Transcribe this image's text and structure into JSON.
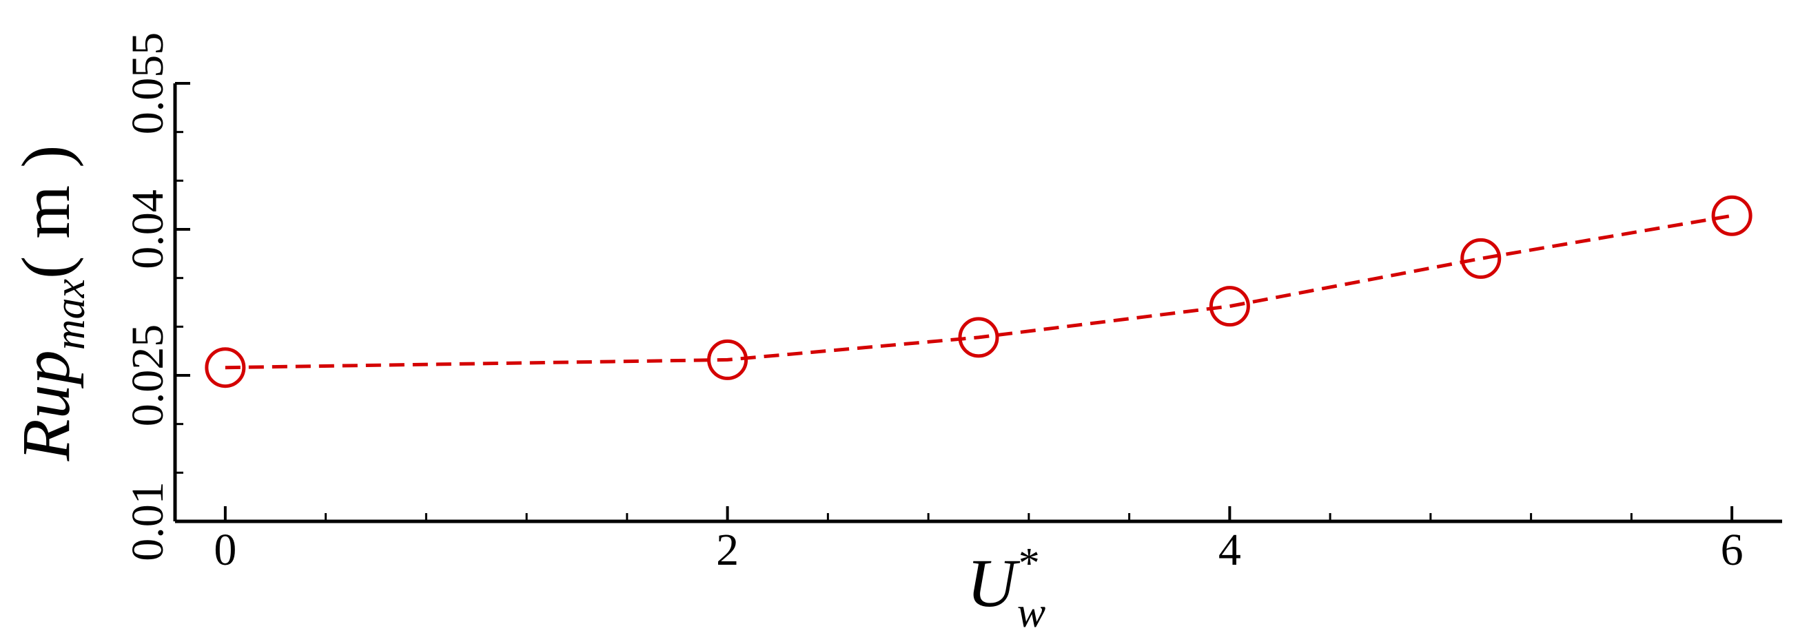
{
  "chart_data": {
    "type": "line",
    "x": [
      0,
      2,
      3,
      4,
      5,
      6
    ],
    "series": [
      {
        "color": "#d40000",
        "values": [
          0.0258,
          0.0266,
          0.0289,
          0.0321,
          0.037,
          0.0414
        ]
      }
    ],
    "xlim": [
      -0.2,
      6.2
    ],
    "xticks": [
      0,
      2,
      4,
      6
    ],
    "xminorticks": [
      0.4,
      0.8,
      1.2,
      1.6,
      2.4,
      2.8,
      3.2,
      3.6,
      4.4,
      4.8,
      5.2,
      5.6
    ],
    "ylim": [
      0.01,
      0.055
    ],
    "yticks": [
      0.01,
      0.025,
      0.04,
      0.055
    ],
    "yminorticks": [
      0.015,
      0.02,
      0.03,
      0.035,
      0.045,
      0.05
    ],
    "xlabel": {
      "base": "U",
      "sub": "w",
      "sup": "*"
    },
    "ylabel": {
      "base": "Rup",
      "sub": "max",
      "unit": "( m )"
    },
    "grid": false,
    "dashed": true,
    "marker": "circle"
  }
}
